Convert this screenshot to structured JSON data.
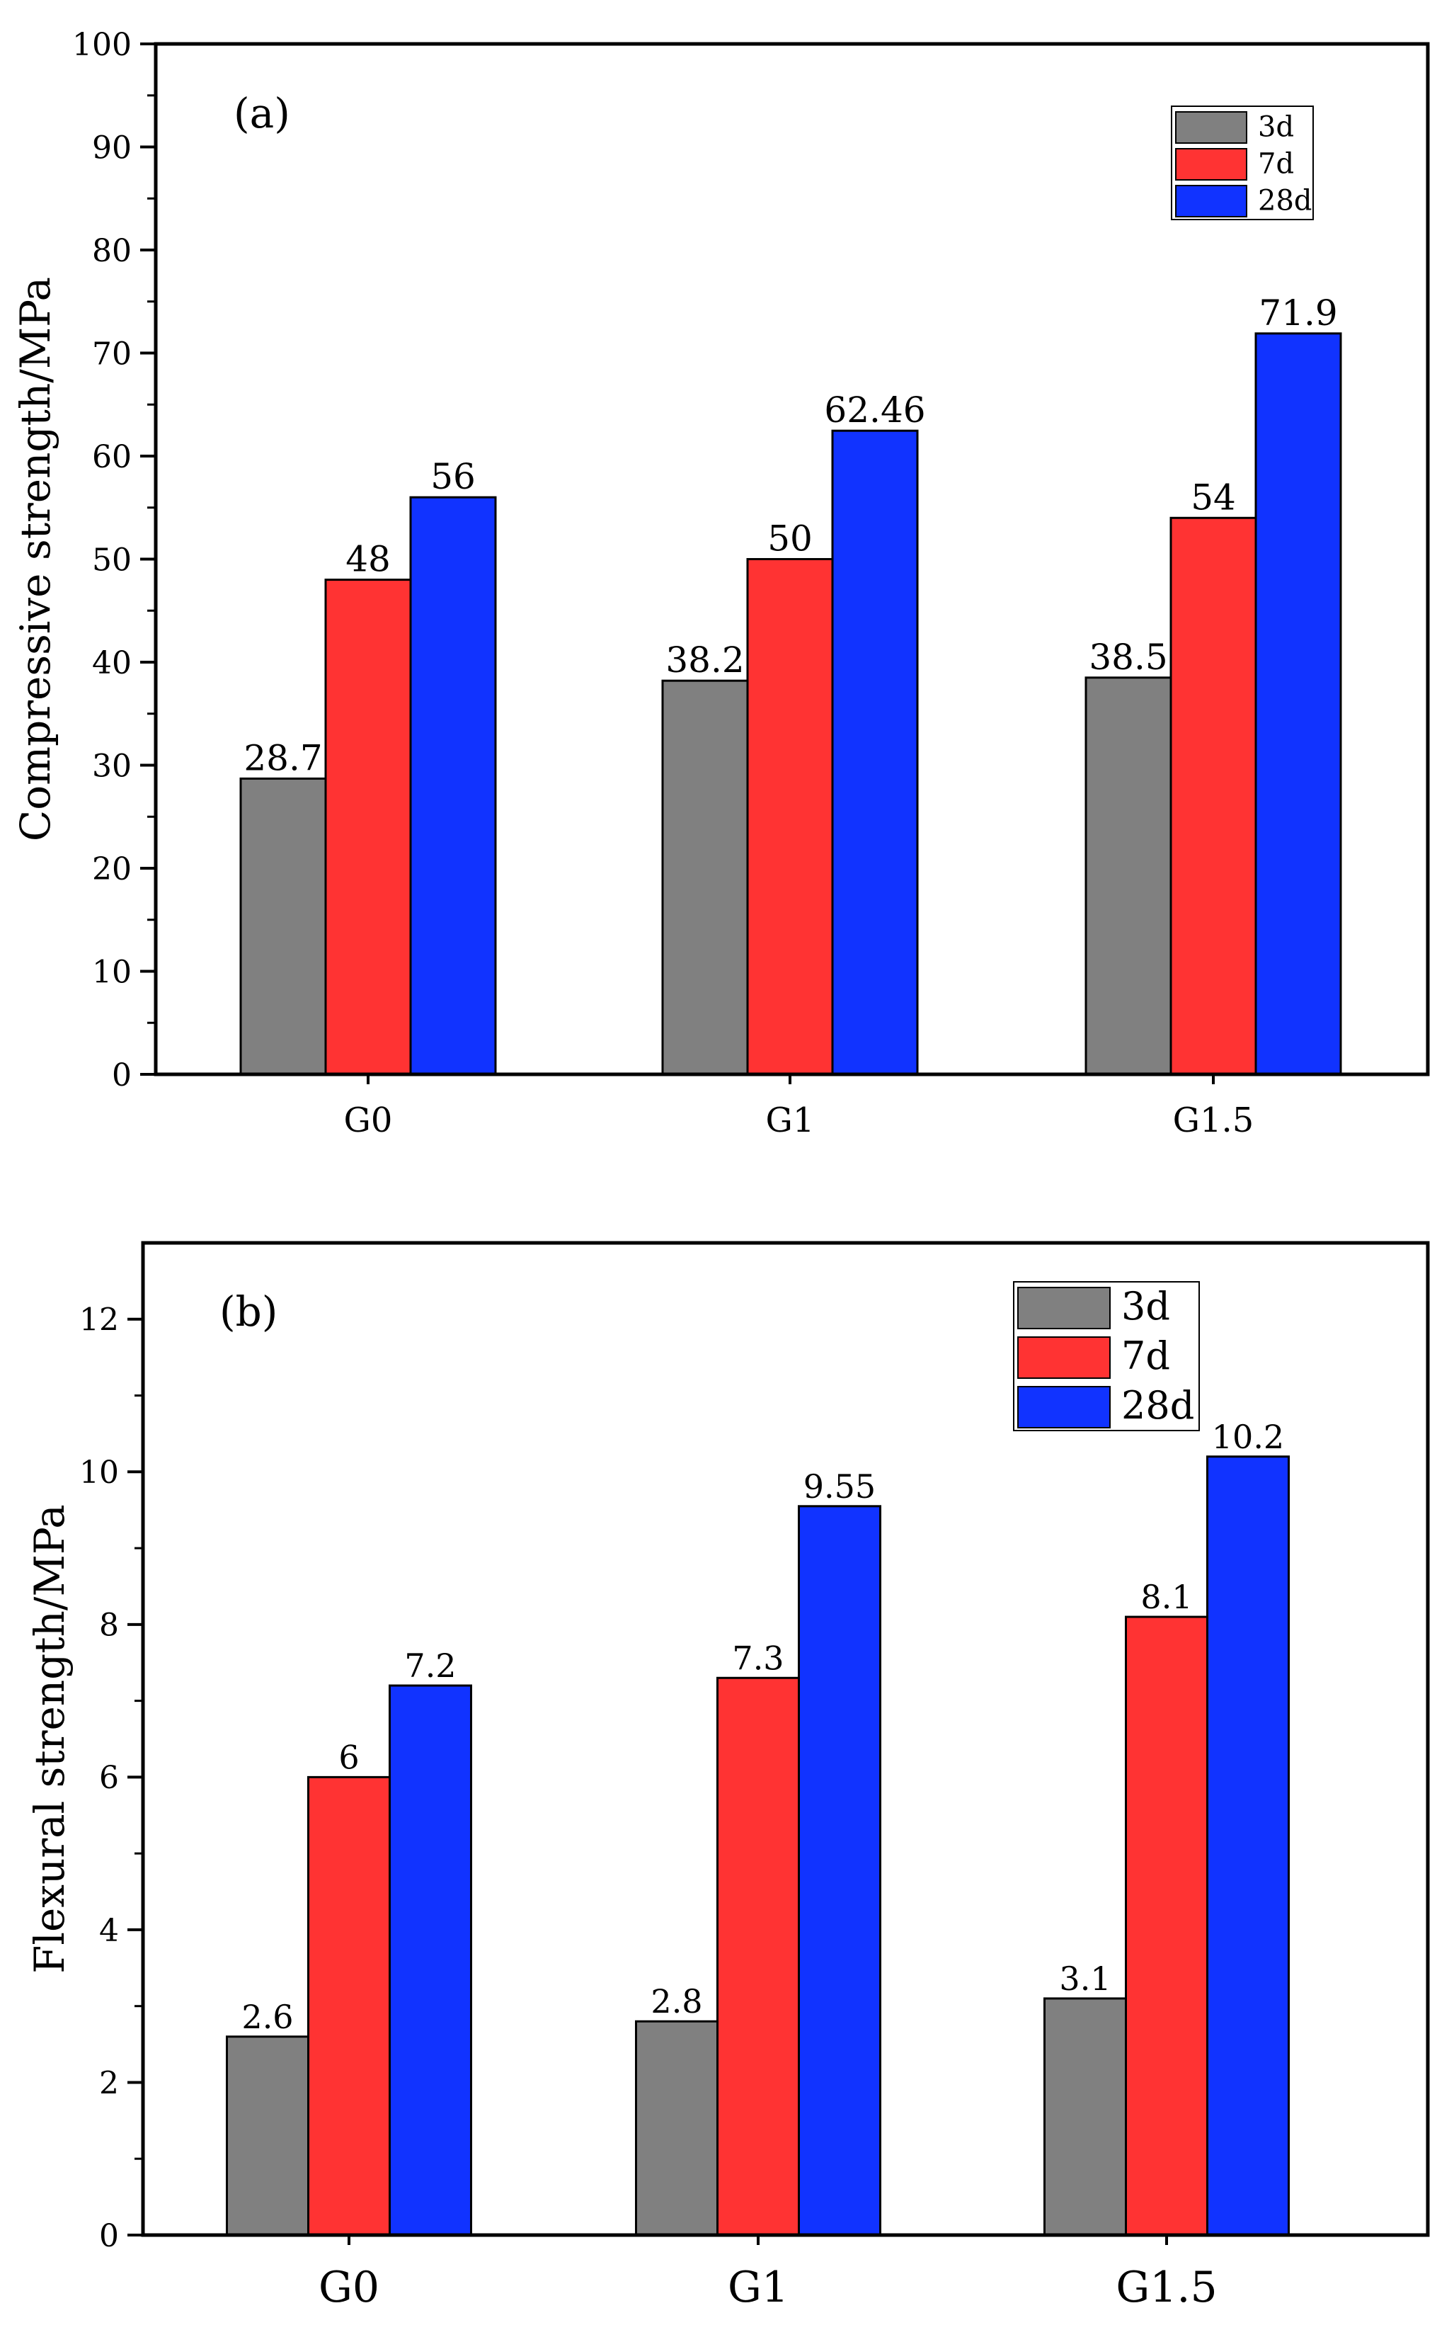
{
  "chart_data": [
    {
      "type": "bar",
      "panel_label": "(a)",
      "categories": [
        "G0",
        "G1",
        "G1.5"
      ],
      "series": [
        {
          "name": "3d",
          "color": "#808080",
          "values": [
            28.7,
            38.2,
            38.5
          ],
          "labels": [
            "28.7",
            "38.2",
            "38.5"
          ]
        },
        {
          "name": "7d",
          "color": "#ff3333",
          "values": [
            48,
            50,
            54
          ],
          "labels": [
            "48",
            "50",
            "54"
          ]
        },
        {
          "name": "28d",
          "color": "#1133ff",
          "values": [
            56,
            62.46,
            71.9
          ],
          "labels": [
            "56",
            "62.46",
            "71.9"
          ]
        }
      ],
      "ylabel": "Compressive strength/MPa",
      "xlabel": "",
      "ylim": [
        0,
        100
      ],
      "yticks": [
        "0",
        "10",
        "20",
        "30",
        "40",
        "50",
        "60",
        "70",
        "80",
        "90",
        "100"
      ],
      "legend_position": "top-right",
      "grid": false
    },
    {
      "type": "bar",
      "panel_label": "(b)",
      "categories": [
        "G0",
        "G1",
        "G1.5"
      ],
      "series": [
        {
          "name": "3d",
          "color": "#808080",
          "values": [
            2.6,
            2.8,
            3.1
          ],
          "labels": [
            "2.6",
            "2.8",
            "3.1"
          ]
        },
        {
          "name": "7d",
          "color": "#ff3333",
          "values": [
            6,
            7.3,
            8.1
          ],
          "labels": [
            "6",
            "7.3",
            "8.1"
          ]
        },
        {
          "name": "28d",
          "color": "#1133ff",
          "values": [
            7.2,
            9.55,
            10.2
          ],
          "labels": [
            "7.2",
            "9.55",
            "10.2"
          ]
        }
      ],
      "ylabel": "Flexural strength/MPa",
      "xlabel": "",
      "ylim": [
        0,
        13
      ],
      "yticks": [
        "0",
        "2",
        "4",
        "6",
        "8",
        "10",
        "12"
      ],
      "legend_position": "top-right",
      "grid": false
    }
  ]
}
